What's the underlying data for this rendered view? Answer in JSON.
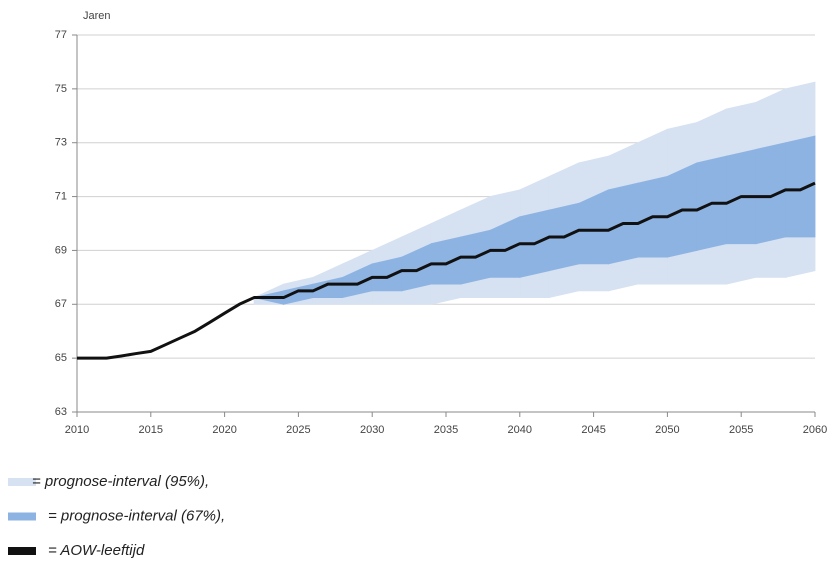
{
  "chart_data": {
    "type": "line",
    "y_label": "Jaren",
    "xlim": [
      2010,
      2060
    ],
    "ylim": [
      63,
      77
    ],
    "xticks": [
      2010,
      2015,
      2020,
      2025,
      2030,
      2035,
      2040,
      2045,
      2050,
      2055,
      2060
    ],
    "yticks": [
      63,
      65,
      67,
      69,
      71,
      73,
      75,
      77
    ],
    "grid": true,
    "bands": [
      {
        "name": "= prognose-interval (95%),",
        "color": "#d6e1f1",
        "x": [
          2022,
          2024,
          2026,
          2028,
          2030,
          2032,
          2034,
          2036,
          2038,
          2040,
          2042,
          2044,
          2046,
          2048,
          2050,
          2052,
          2054,
          2056,
          2058,
          2060
        ],
        "lower": [
          67,
          67,
          67,
          67,
          67,
          67,
          67,
          67.25,
          67.25,
          67.25,
          67.25,
          67.5,
          67.5,
          67.75,
          67.75,
          67.75,
          67.75,
          68,
          68,
          68.25
        ],
        "upper": [
          67.25,
          67.75,
          68,
          68.5,
          69,
          69.5,
          70,
          70.5,
          71,
          71.25,
          71.75,
          72.25,
          72.5,
          73,
          73.5,
          73.75,
          74.25,
          74.5,
          75,
          75.25
        ]
      },
      {
        "name": "= prognose-interval (67%),",
        "color": "#8db3e2",
        "x": [
          2022,
          2024,
          2026,
          2028,
          2030,
          2032,
          2034,
          2036,
          2038,
          2040,
          2042,
          2044,
          2046,
          2048,
          2050,
          2052,
          2054,
          2056,
          2058,
          2060
        ],
        "lower": [
          67.25,
          67,
          67.25,
          67.25,
          67.5,
          67.5,
          67.75,
          67.75,
          68,
          68,
          68.25,
          68.5,
          68.5,
          68.75,
          68.75,
          69,
          69.25,
          69.25,
          69.5,
          69.5
        ],
        "upper": [
          67.25,
          67.5,
          67.75,
          68,
          68.5,
          68.75,
          69.25,
          69.5,
          69.75,
          70.25,
          70.5,
          70.75,
          71.25,
          71.5,
          71.75,
          72.25,
          72.5,
          72.75,
          73,
          73.25
        ]
      }
    ],
    "series": [
      {
        "name": "= AOW-leeftijd",
        "color": "#111111",
        "x": [
          2010,
          2011,
          2012,
          2013,
          2014,
          2015,
          2016,
          2017,
          2018,
          2019,
          2020,
          2021,
          2022,
          2023,
          2024,
          2025,
          2026,
          2027,
          2028,
          2029,
          2030,
          2031,
          2032,
          2033,
          2034,
          2035,
          2036,
          2037,
          2038,
          2039,
          2040,
          2041,
          2042,
          2043,
          2044,
          2045,
          2046,
          2047,
          2048,
          2049,
          2050,
          2051,
          2052,
          2053,
          2054,
          2055,
          2056,
          2057,
          2058,
          2059,
          2060
        ],
        "values": [
          65,
          65,
          65,
          65.08,
          65.17,
          65.25,
          65.5,
          65.75,
          66,
          66.33,
          66.67,
          67,
          67.25,
          67.25,
          67.25,
          67.5,
          67.5,
          67.75,
          67.75,
          67.75,
          68,
          68,
          68.25,
          68.25,
          68.5,
          68.5,
          68.75,
          68.75,
          69,
          69,
          69.25,
          69.25,
          69.5,
          69.5,
          69.75,
          69.75,
          69.75,
          70,
          70,
          70.25,
          70.25,
          70.5,
          70.5,
          70.75,
          70.75,
          71,
          71,
          71,
          71.25,
          71.25,
          71.5
        ]
      }
    ]
  }
}
